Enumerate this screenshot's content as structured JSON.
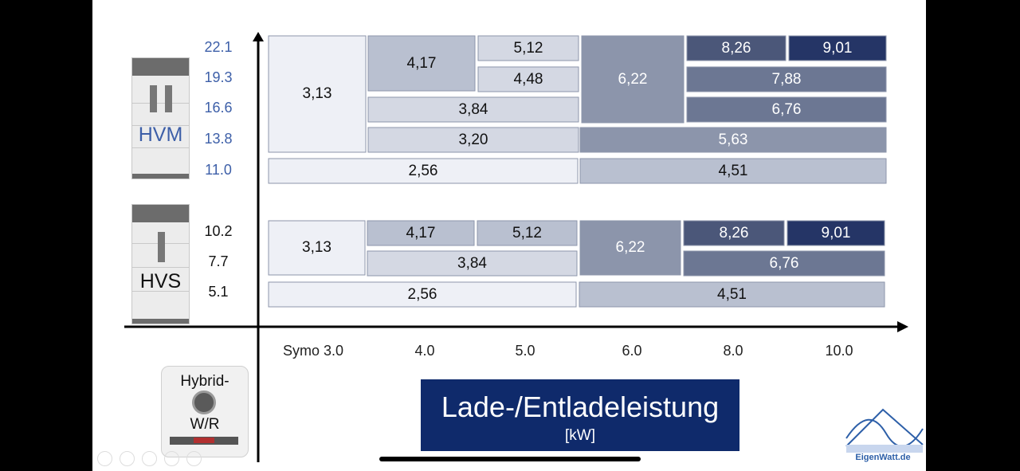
{
  "colors": {
    "level1": "#eef0f6",
    "level2": "#d4d8e3",
    "level3": "#b9c0d0",
    "level4": "#8c95ab",
    "level5": "#6c7793",
    "level6": "#4b5779",
    "level7": "#253566",
    "hvm_label": "#3d5fa8",
    "title_box": "#0f2a6b"
  },
  "hvm": {
    "name": "HVM"
  },
  "hvs": {
    "name": "HVS"
  },
  "inverter": {
    "line1": "Hybrid-",
    "line2": "W/R"
  },
  "title": {
    "main": "Lade-/Entladeleistung",
    "unit": "[kW]"
  },
  "logo": {
    "text": "EigenWatt.de"
  },
  "chart_data": {
    "type": "table",
    "x_categories": [
      "Symo 3.0",
      "4.0",
      "5.0",
      "6.0",
      "8.0",
      "10.0"
    ],
    "hvm_capacities": [
      "22.1",
      "19.3",
      "16.6",
      "13.8",
      "11.0"
    ],
    "hvs_capacities": [
      "10.2",
      "7.7",
      "5.1"
    ],
    "hvm_cells": [
      {
        "text": "3,13",
        "level": 1
      },
      {
        "text": "4,17",
        "level": 3
      },
      {
        "text": "5,12",
        "level": 2
      },
      {
        "text": "4,48",
        "level": 2
      },
      {
        "text": "6,22",
        "level": 4
      },
      {
        "text": "8,26",
        "level": 6
      },
      {
        "text": "9,01",
        "level": 7
      },
      {
        "text": "7,88",
        "level": 5
      },
      {
        "text": "3,84",
        "level": 2
      },
      {
        "text": "6,76",
        "level": 5
      },
      {
        "text": "3,20",
        "level": 2
      },
      {
        "text": "5,63",
        "level": 4
      },
      {
        "text": "2,56",
        "level": 1
      },
      {
        "text": "4,51",
        "level": 3
      }
    ],
    "hvs_cells": [
      {
        "text": "3,13",
        "level": 1
      },
      {
        "text": "4,17",
        "level": 3
      },
      {
        "text": "5,12",
        "level": 3
      },
      {
        "text": "6,22",
        "level": 4
      },
      {
        "text": "8,26",
        "level": 6
      },
      {
        "text": "9,01",
        "level": 7
      },
      {
        "text": "3,84",
        "level": 2
      },
      {
        "text": "6,76",
        "level": 5
      },
      {
        "text": "2,56",
        "level": 1
      },
      {
        "text": "4,51",
        "level": 3
      }
    ]
  }
}
